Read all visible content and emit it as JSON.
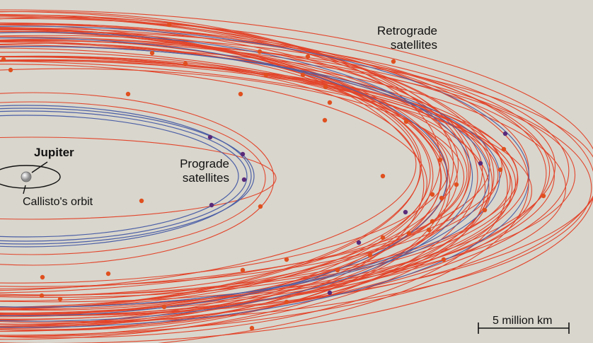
{
  "labels": {
    "retrograde": "Retrograde\nsatellites",
    "prograde": "Prograde\nsatellites",
    "jupiter": "Jupiter",
    "callisto": "Callisto's orbit",
    "scale": "5 million km"
  },
  "colors": {
    "background": "#d9d6cd",
    "retrograde": "#e2452b",
    "prograde": "#4b5fa6",
    "retrograde_dot": "#e0501f",
    "prograde_dot": "#5a2a7a"
  }
}
